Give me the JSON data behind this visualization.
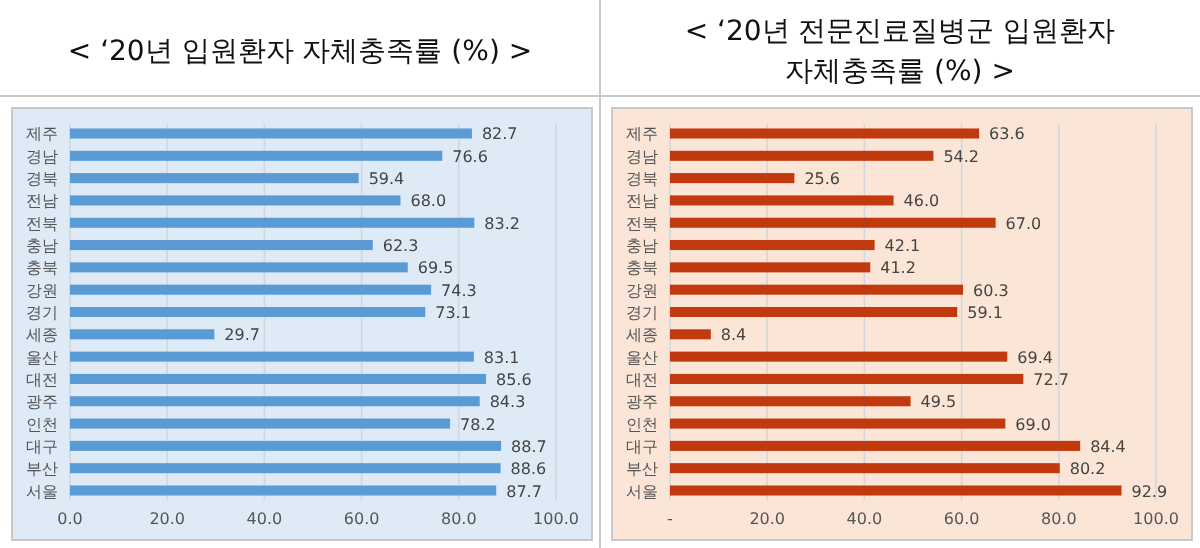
{
  "chart_data": [
    {
      "type": "bar",
      "orientation": "horizontal",
      "title": "< ‘20년 입원환자 자체충족률 (%) >",
      "categories": [
        "제주",
        "경남",
        "경북",
        "전남",
        "전북",
        "충남",
        "충북",
        "강원",
        "경기",
        "세종",
        "울산",
        "대전",
        "광주",
        "인천",
        "대구",
        "부산",
        "서울"
      ],
      "values": [
        82.7,
        76.6,
        59.4,
        68.0,
        83.2,
        62.3,
        69.5,
        74.3,
        73.1,
        29.7,
        83.1,
        85.6,
        84.3,
        78.2,
        88.7,
        88.6,
        87.7
      ],
      "value_labels": [
        "82.7",
        "76.6",
        "59.4",
        "68.0",
        "83.2",
        "62.3",
        "69.5",
        "74.3",
        "73.1",
        "29.7",
        "83.1",
        "85.6",
        "84.3",
        "78.2",
        "88.7",
        "88.6",
        "87.7"
      ],
      "color": "#5b9bd5",
      "xlim": [
        0,
        100
      ],
      "xticks": [
        {
          "value": 0,
          "label": "0.0"
        },
        {
          "value": 20,
          "label": "20.0"
        },
        {
          "value": 40,
          "label": "40.0"
        },
        {
          "value": 60,
          "label": "60.0"
        },
        {
          "value": 80,
          "label": "80.0"
        },
        {
          "value": 100,
          "label": "100.0"
        }
      ],
      "grid": "x"
    },
    {
      "type": "bar",
      "orientation": "horizontal",
      "title": "< ‘20년 전문진료질병군 입원환자 자체충족률 (%) >",
      "categories": [
        "제주",
        "경남",
        "경북",
        "전남",
        "전북",
        "충남",
        "충북",
        "강원",
        "경기",
        "세종",
        "울산",
        "대전",
        "광주",
        "인천",
        "대구",
        "부산",
        "서울"
      ],
      "values": [
        63.6,
        54.2,
        25.6,
        46.0,
        67.0,
        42.1,
        41.2,
        60.3,
        59.1,
        8.4,
        69.4,
        72.7,
        49.5,
        69.0,
        84.4,
        80.2,
        92.9
      ],
      "value_labels": [
        "63.6",
        "54.2",
        "25.6",
        "46.0",
        "67.0",
        "42.1",
        "41.2",
        "60.3",
        "59.1",
        "8.4",
        "69.4",
        "72.7",
        "49.5",
        "69.0",
        "84.4",
        "80.2",
        "92.9"
      ],
      "color": "#c0390f",
      "xlim": [
        0,
        100
      ],
      "xticks": [
        {
          "value": 0,
          "label": "-"
        },
        {
          "value": 20,
          "label": "20.0"
        },
        {
          "value": 40,
          "label": "40.0"
        },
        {
          "value": 60,
          "label": "60.0"
        },
        {
          "value": 80,
          "label": "80.0"
        },
        {
          "value": 100,
          "label": "100.0"
        }
      ],
      "grid": "x"
    }
  ]
}
